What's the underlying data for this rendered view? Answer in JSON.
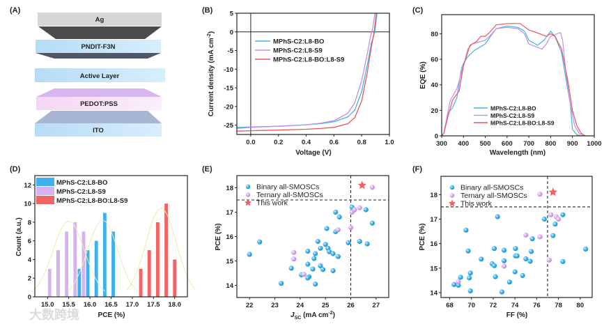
{
  "panel_labels": {
    "a": "(A)",
    "b": "(B)",
    "c": "(C)",
    "d": "(D)",
    "e": "(E)",
    "f": "(F)"
  },
  "device_stack": {
    "layers": [
      "Ag",
      "PNDIT-F3N",
      "Active Layer",
      "PEDOT:PSS",
      "ITO"
    ],
    "colors": {
      "ag": "#d4d4d4",
      "dark": "#4a4a4a",
      "blue": "#bfe3fa",
      "pink": "#f6dcf6",
      "purple": "#d9b8ee",
      "ito_top": "#a9b8d6"
    }
  },
  "watermark": "大数跨境",
  "chart_data": [
    {
      "id": "B",
      "type": "line",
      "xlabel": "Voltage (V)",
      "ylabel": "Current density (mA cm",
      "ylabel_sup": "-2",
      "ylabel_end": ")",
      "xlim": [
        -0.1,
        1.0
      ],
      "ylim": [
        -27.5,
        5
      ],
      "xticks": [
        0.0,
        0.2,
        0.4,
        0.6,
        0.8,
        1.0
      ],
      "xtick_labels": [
        "0.0",
        "0.2",
        "0.4",
        "0.6",
        "0.8",
        "1.0"
      ],
      "yticks": [
        5,
        0,
        -5,
        -10,
        -15,
        -20,
        -25
      ],
      "ytick_labels": [
        "5",
        "0",
        "-5",
        "-10",
        "-15",
        "-20",
        "-25"
      ],
      "legend_placement": "upper-left",
      "series": [
        {
          "name": "MPhS-C2:L8-BO",
          "color": "#45b4e8",
          "x": [
            -0.1,
            0,
            0.2,
            0.4,
            0.5,
            0.6,
            0.7,
            0.75,
            0.8,
            0.84,
            0.87,
            0.895,
            0.91
          ],
          "y": [
            -25.6,
            -25.5,
            -25.3,
            -24.9,
            -24.6,
            -24.1,
            -22.8,
            -21,
            -16,
            -9,
            -3,
            0,
            5
          ]
        },
        {
          "name": "MPhS-C2:L8-S9",
          "color": "#c08ef0",
          "x": [
            -0.1,
            0,
            0.2,
            0.4,
            0.5,
            0.6,
            0.7,
            0.75,
            0.8,
            0.84,
            0.865,
            0.88,
            0.895
          ],
          "y": [
            -25.9,
            -25.6,
            -25.3,
            -24.9,
            -24.5,
            -23.8,
            -21.8,
            -19,
            -13,
            -6,
            -1,
            1,
            5
          ]
        },
        {
          "name": "MPhS-C2:L8-BO:L8-S9",
          "color": "#ee5555",
          "x": [
            -0.1,
            0,
            0.2,
            0.4,
            0.5,
            0.6,
            0.7,
            0.75,
            0.8,
            0.84,
            0.87,
            0.89,
            0.905
          ],
          "y": [
            -26.6,
            -26.5,
            -26.3,
            -26.1,
            -25.9,
            -25.6,
            -24.6,
            -23,
            -18.5,
            -11,
            -4,
            0,
            5
          ]
        }
      ]
    },
    {
      "id": "C",
      "type": "line",
      "xlabel": "Wavelength (nm)",
      "ylabel": "EQE (%)",
      "xlim": [
        300,
        1000
      ],
      "ylim": [
        0,
        95
      ],
      "xticks": [
        300,
        400,
        500,
        600,
        700,
        800,
        900,
        1000
      ],
      "xtick_labels": [
        "300",
        "400",
        "500",
        "600",
        "700",
        "800",
        "900",
        "1000"
      ],
      "yticks": [
        0,
        20,
        40,
        60,
        80
      ],
      "ytick_labels": [
        "0",
        "20",
        "40",
        "60",
        "80"
      ],
      "legend_placement": "lower-center",
      "series": [
        {
          "name": "MPhS-C2:L8-BO",
          "color": "#45b4e8",
          "x": [
            300,
            310,
            330,
            350,
            370,
            390,
            400,
            420,
            450,
            480,
            500,
            520,
            550,
            600,
            650,
            680,
            700,
            740,
            770,
            800,
            820,
            850,
            870,
            890,
            900,
            920,
            940
          ],
          "y": [
            0,
            2,
            18,
            22,
            30,
            52,
            57,
            62,
            67,
            70,
            72,
            77,
            84,
            86,
            85,
            82,
            75,
            71,
            75,
            82,
            78,
            65,
            45,
            25,
            5,
            1,
            0
          ]
        },
        {
          "name": "MPhS-C2:L8-S9",
          "color": "#c08ef0",
          "x": [
            300,
            310,
            330,
            340,
            370,
            400,
            420,
            440,
            480,
            500,
            520,
            550,
            600,
            650,
            680,
            700,
            730,
            760,
            780,
            800,
            830,
            845,
            855,
            870,
            890,
            910,
            930,
            950
          ],
          "y": [
            0,
            2,
            20,
            28,
            37,
            55,
            68,
            72,
            74,
            75,
            78,
            84,
            85,
            84,
            80,
            72,
            70,
            68,
            72,
            78,
            80,
            81,
            75,
            50,
            25,
            8,
            2,
            0
          ]
        },
        {
          "name": "MPhS-C2:L8-BO:L8-S9",
          "color": "#ee5555",
          "x": [
            300,
            310,
            330,
            350,
            380,
            400,
            430,
            460,
            480,
            500,
            520,
            550,
            600,
            660,
            700,
            750,
            780,
            800,
            820,
            850,
            880,
            900,
            920,
            940,
            960
          ],
          "y": [
            0,
            2,
            16,
            28,
            35,
            55,
            71,
            74,
            78,
            78,
            81,
            87,
            88,
            88,
            83,
            80,
            78,
            80,
            78,
            68,
            42,
            20,
            8,
            2,
            0
          ]
        }
      ]
    },
    {
      "id": "D",
      "type": "bar",
      "xlabel": "PCE (%)",
      "ylabel": "Count (a.u.)",
      "xlim": [
        14.7,
        18.3
      ],
      "ylim": [
        0,
        13
      ],
      "xticks": [
        15.0,
        15.5,
        16.0,
        16.5,
        17.0,
        17.5,
        18.0
      ],
      "xtick_labels": [
        "15.0",
        "15.5",
        "16.0",
        "16.5",
        "17.0",
        "17.5",
        "18.0"
      ],
      "yticks": [
        0,
        2,
        4,
        6,
        8,
        10,
        12
      ],
      "ytick_labels": [
        "0",
        "2",
        "4",
        "6",
        "8",
        "10",
        "12"
      ],
      "bar_width": 0.08,
      "legend_placement": "upper-left",
      "fit_color": "#f3e9a8",
      "series": [
        {
          "name": "MPhS-C2:L8-BO",
          "color": "#3fb0ee",
          "x": [
            15.75,
            15.95,
            16.15,
            16.35,
            16.55
          ],
          "values": [
            3,
            5,
            6,
            9,
            7
          ],
          "fit": {
            "mean": 16.3,
            "sigma": 0.24,
            "amplitude": 8.2
          }
        },
        {
          "name": "MPhS-C2:L8-S9",
          "color": "#d6b2f2",
          "x": [
            15.05,
            15.25,
            15.45,
            15.65,
            15.85
          ],
          "values": [
            3,
            5,
            7,
            8,
            7
          ],
          "fit": {
            "mean": 15.5,
            "sigma": 0.25,
            "amplitude": 8.1
          }
        },
        {
          "name": "MPhS-C2:L8-BO:L8-S9",
          "color": "#f26464",
          "x": [
            17.2,
            17.4,
            17.6,
            17.8,
            18.0
          ],
          "values": [
            3,
            5,
            8,
            10,
            4
          ],
          "fit": {
            "mean": 17.68,
            "sigma": 0.24,
            "amplitude": 9.5
          }
        }
      ]
    },
    {
      "id": "E",
      "type": "scatter",
      "xlabel": "J",
      "xlabel_sub": "SC",
      "xlabel_end": " (mA cm",
      "xlabel_sup": "-2",
      "xlabel_close": ")",
      "ylabel": "PCE (%)",
      "xlim": [
        21.5,
        27.5
      ],
      "ylim": [
        13.5,
        18.5
      ],
      "xticks": [
        22,
        23,
        24,
        25,
        26,
        27
      ],
      "xtick_labels": [
        "22",
        "23",
        "24",
        "25",
        "26",
        "27"
      ],
      "yticks": [
        14,
        15,
        16,
        17,
        18
      ],
      "ytick_labels": [
        "14",
        "15",
        "16",
        "17",
        "18"
      ],
      "reference_lines": {
        "x": 26,
        "y": 17.5
      },
      "legend_placement": "upper-left",
      "series": [
        {
          "name": "Binary all-SMOSCs",
          "color": "#3aaee6",
          "x": [
            22.0,
            22.4,
            23.25,
            23.65,
            24.05,
            24.3,
            24.3,
            24.35,
            24.3,
            24.55,
            24.6,
            24.5,
            24.6,
            24.7,
            24.8,
            24.8,
            24.9,
            25.0,
            25.05,
            25.1,
            25.15,
            25.3,
            25.3,
            25.4,
            25.4,
            25.5,
            25.55,
            25.9,
            26.05,
            26.35,
            26.6,
            26.65,
            26.85
          ],
          "y": [
            15.27,
            15.78,
            14.08,
            14.7,
            14.43,
            14.87,
            15.4,
            14.35,
            14.3,
            15.1,
            15.3,
            14.67,
            14.05,
            15.8,
            15.52,
            14.8,
            14.65,
            15.68,
            16.33,
            15.52,
            15.38,
            15.3,
            14.6,
            17.0,
            16.2,
            15.18,
            16.8,
            15.75,
            17.2,
            15.8,
            17.1,
            15.7,
            16.55
          ]
        },
        {
          "name": "Ternary all-SMOSCs",
          "color": "#d9a9f2",
          "x": [
            23.75,
            23.75,
            24.15,
            25.5,
            26.0,
            26.05,
            26.15,
            26.35,
            26.85
          ],
          "y": [
            15.35,
            15.08,
            14.45,
            16.28,
            16.37,
            17.0,
            17.1,
            17.18,
            18.02
          ]
        },
        {
          "name": "This work",
          "color": "#f26060",
          "marker": "star",
          "x": [
            26.45
          ],
          "y": [
            18.1
          ]
        }
      ]
    },
    {
      "id": "F",
      "type": "scatter",
      "xlabel": "FF (%)",
      "ylabel": "PCE (%)",
      "xlim": [
        67.2,
        81.1
      ],
      "ylim": [
        13.8,
        18.75
      ],
      "xticks": [
        68,
        70,
        72,
        74,
        76,
        78,
        80
      ],
      "xtick_labels": [
        "68",
        "70",
        "72",
        "74",
        "76",
        "78",
        "80"
      ],
      "yticks": [
        14,
        15,
        16,
        17,
        18
      ],
      "ytick_labels": [
        "14",
        "15",
        "16",
        "17",
        "18"
      ],
      "reference_lines": {
        "x": 77,
        "y": 17.5
      },
      "legend_placement": "upper-left",
      "series": [
        {
          "name": "Binary all-SMOSCs",
          "color": "#3aaee6",
          "x": [
            68.4,
            68.8,
            69.0,
            69.5,
            69.7,
            69.8,
            69.9,
            69.9,
            70.9,
            71.9,
            72.1,
            72.1,
            72.2,
            72.4,
            73.0,
            73.0,
            73.5,
            74.0,
            74.05,
            74.05,
            74.2,
            74.7,
            75.0,
            75.4,
            75.5,
            75.6,
            76.7,
            77.5,
            77.7,
            78.4,
            78.4,
            80.5,
            72.8
          ],
          "y": [
            14.33,
            14.3,
            14.63,
            16.55,
            15.7,
            14.6,
            14.8,
            14.07,
            15.37,
            15.18,
            15.8,
            15.1,
            14.65,
            17.1,
            15.73,
            15.3,
            14.43,
            14.85,
            15.8,
            15.5,
            15.5,
            14.7,
            15.38,
            15.28,
            15.68,
            16.2,
            17.0,
            16.33,
            16.8,
            17.18,
            15.27,
            15.78,
            14.03
          ]
        },
        {
          "name": "Ternary all-SMOSCs",
          "color": "#d9a9f2",
          "x": [
            68.8,
            73.0,
            75.0,
            76.3,
            76.3,
            77.15,
            77.3,
            77.8,
            78.0
          ],
          "y": [
            14.45,
            15.08,
            16.35,
            16.28,
            18.02,
            15.33,
            17.18,
            17.1,
            17.0
          ]
        },
        {
          "name": "This work",
          "color": "#f26060",
          "marker": "star",
          "x": [
            77.5
          ],
          "y": [
            18.1
          ]
        }
      ]
    }
  ]
}
